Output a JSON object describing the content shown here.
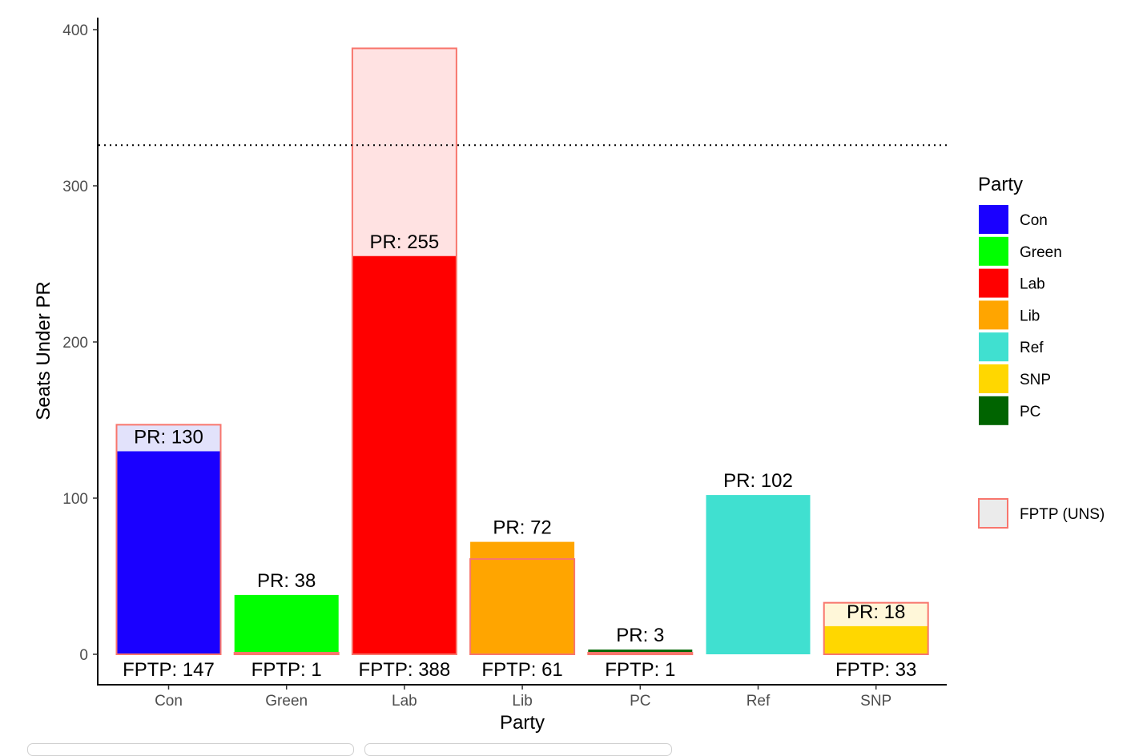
{
  "chart_data": {
    "type": "bar",
    "xlabel": "Party",
    "ylabel": "Seats Under PR",
    "ylim": [
      0,
      400
    ],
    "yticks": [
      0,
      100,
      200,
      300,
      400
    ],
    "majority_line": 326,
    "categories": [
      "Con",
      "Green",
      "Lab",
      "Lib",
      "PC",
      "Ref",
      "SNP"
    ],
    "series": [
      {
        "name": "PR",
        "values": [
          130,
          38,
          255,
          72,
          3,
          102,
          18
        ]
      },
      {
        "name": "FPTP (UNS)",
        "values": [
          147,
          1,
          388,
          61,
          1,
          0,
          33
        ]
      }
    ],
    "pr_labels": [
      "PR: 130",
      "PR: 38",
      "PR: 255",
      "PR: 72",
      "PR: 3",
      "PR: 102",
      "PR: 18"
    ],
    "fptp_labels": [
      "FPTP: 147",
      "FPTP: 1",
      "FPTP: 388",
      "FPTP: 61",
      "FPTP: 1",
      "",
      "FPTP: 33"
    ],
    "colors": {
      "Con": "#1a00ff",
      "Green": "#00ff00",
      "Lab": "#ff0000",
      "Lib": "#ffa500",
      "PC": "#006400",
      "Ref": "#40e0d0",
      "SNP": "#ffd700",
      "fptp_outline": "#f8766d"
    },
    "fptp_fills": {
      "Con": "#e2e2fb",
      "Green": "#e8ffe8",
      "Lab": "#ffe2e2",
      "Lib": "#fff1dc",
      "PC": "#e2ece2",
      "Ref": "#e6f9f7",
      "SNP": "#fff7d9"
    },
    "legend": {
      "title": "Party",
      "position": "right",
      "entries": [
        "Con",
        "Green",
        "Lab",
        "Lib",
        "Ref",
        "SNP",
        "PC"
      ],
      "fptp_entry": "FPTP (UNS)"
    },
    "grid": false
  }
}
